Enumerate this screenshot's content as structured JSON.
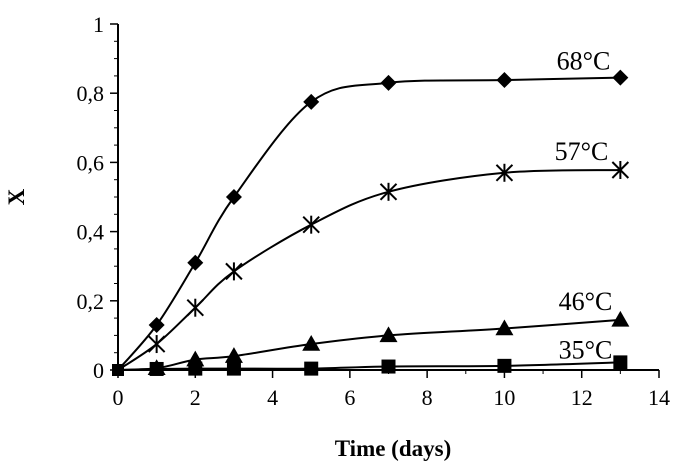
{
  "chart_data": {
    "type": "line",
    "title": "",
    "xlabel": "Time (days)",
    "ylabel": "X",
    "xlim": [
      0,
      14
    ],
    "ylim": [
      0,
      1
    ],
    "xticks": [
      0,
      2,
      4,
      6,
      8,
      10,
      12,
      14
    ],
    "xtick_labels": [
      "0",
      "2",
      "4",
      "6",
      "8",
      "10",
      "12",
      "14"
    ],
    "yticks": [
      0,
      0.2,
      0.4,
      0.6,
      0.8,
      1
    ],
    "ytick_labels": [
      "0",
      "0,2",
      "0,4",
      "0,6",
      "0,8",
      "1"
    ],
    "grid": false,
    "legend": "inline labels at series ends",
    "series": [
      {
        "name": "68°C",
        "marker": "diamond",
        "x": [
          0,
          1,
          2,
          3,
          5,
          7,
          10,
          13
        ],
        "y": [
          0,
          0.13,
          0.31,
          0.5,
          0.775,
          0.83,
          0.838,
          0.845
        ]
      },
      {
        "name": "57°C",
        "marker": "asterisk",
        "x": [
          0,
          1,
          2,
          3,
          5,
          7,
          10,
          13
        ],
        "y": [
          0,
          0.075,
          0.18,
          0.285,
          0.42,
          0.515,
          0.57,
          0.578
        ]
      },
      {
        "name": "46°C",
        "marker": "triangle",
        "x": [
          0,
          1,
          2,
          3,
          5,
          7,
          10,
          13
        ],
        "y": [
          0,
          0.005,
          0.03,
          0.04,
          0.075,
          0.1,
          0.12,
          0.145
        ]
      },
      {
        "name": "35°C",
        "marker": "square",
        "x": [
          0,
          1,
          2,
          3,
          5,
          7,
          10,
          13
        ],
        "y": [
          0,
          0.003,
          0.004,
          0.004,
          0.004,
          0.01,
          0.012,
          0.022
        ]
      }
    ]
  }
}
